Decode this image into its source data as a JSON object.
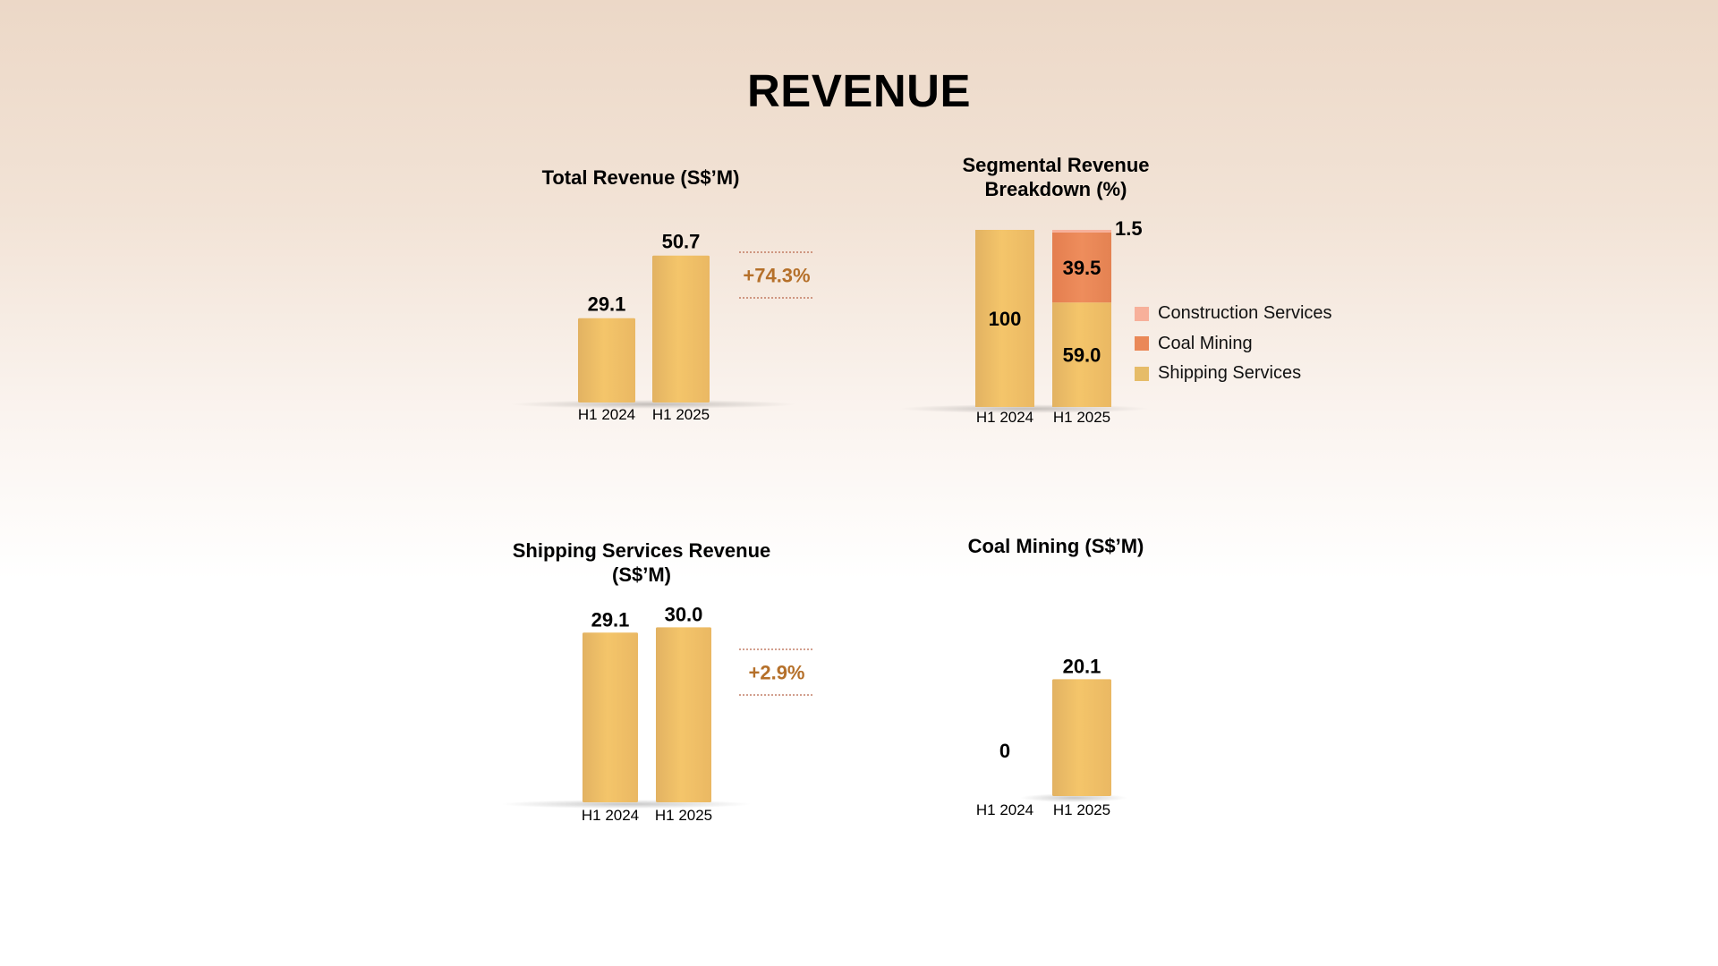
{
  "page": {
    "title": "REVENUE"
  },
  "colors": {
    "shipping": "#f1c165",
    "coal": "#ea8857",
    "construction": "#f7b09a",
    "growth": "#b5702a"
  },
  "chart_data": [
    {
      "id": "total",
      "type": "bar",
      "title": "Total Revenue (S$’M)",
      "categories": [
        "H1 2024",
        "H1 2025"
      ],
      "values": [
        29.1,
        50.7
      ],
      "value_labels": [
        "29.1",
        "50.7"
      ],
      "growth_label": "+74.3%"
    },
    {
      "id": "segment",
      "type": "bar",
      "stacked": true,
      "title": "Segmental Revenue Breakdown (%)",
      "categories": [
        "H1 2024",
        "H1 2025"
      ],
      "series": [
        {
          "name": "Shipping Services",
          "values": [
            100,
            59.0
          ],
          "labels": [
            "100",
            "59.0"
          ]
        },
        {
          "name": "Coal Mining",
          "values": [
            0,
            39.5
          ],
          "labels": [
            "",
            "39.5"
          ]
        },
        {
          "name": "Construction Services",
          "values": [
            0,
            1.5
          ],
          "labels": [
            "",
            "1.5"
          ]
        }
      ],
      "legend": [
        "Construction Services",
        "Coal Mining",
        "Shipping Services"
      ],
      "legend_position": "right"
    },
    {
      "id": "shipping",
      "type": "bar",
      "title": "Shipping Services Revenue (S$’M)",
      "categories": [
        "H1 2024",
        "H1 2025"
      ],
      "values": [
        29.1,
        30.0
      ],
      "value_labels": [
        "29.1",
        "30.0"
      ],
      "growth_label": "+2.9%"
    },
    {
      "id": "coal",
      "type": "bar",
      "title": "Coal Mining (S$’M)",
      "categories": [
        "H1 2024",
        "H1 2025"
      ],
      "values": [
        0,
        20.1
      ],
      "value_labels": [
        "0",
        "20.1"
      ]
    }
  ]
}
